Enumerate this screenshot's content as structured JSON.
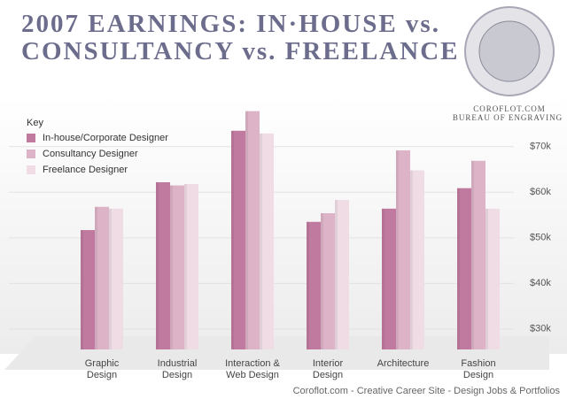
{
  "chart_data": {
    "type": "bar",
    "title": "2007 EARNINGS: IN·HOUSE vs. CONSULTANCY vs. FREELANCE",
    "logo_lines": [
      "COROFLOT.COM",
      "BUREAU OF ENGRAVING"
    ],
    "legend_title": "Key",
    "footer": "Coroflot.com - Creative Career Site - Design Jobs & Portfolios",
    "categories": [
      "Graphic Design",
      "Industrial Design",
      "Interaction & Web Design",
      "Interior Design",
      "Architecture",
      "Fashion Design"
    ],
    "series": [
      {
        "name": "In-house/Corporate Designer",
        "color": "#c07a9f",
        "values": [
          51700,
          62200,
          73500,
          53500,
          56400,
          60900
        ]
      },
      {
        "name": "Consultancy Designer",
        "color": "#ddb3c8",
        "values": [
          56800,
          61500,
          77800,
          55400,
          69200,
          66900
        ]
      },
      {
        "name": "Freelance Designer",
        "color": "#f0dce5",
        "values": [
          56400,
          61800,
          72900,
          58300,
          64800,
          56400
        ]
      }
    ],
    "ylim": [
      25500,
      80000
    ],
    "yticks": [
      {
        "value": 30000,
        "label": "$30k"
      },
      {
        "value": 40000,
        "label": "$40k"
      },
      {
        "value": 50000,
        "label": "$50k"
      },
      {
        "value": 60000,
        "label": "$60k"
      },
      {
        "value": 70000,
        "label": "$70k"
      }
    ],
    "grid": true
  }
}
